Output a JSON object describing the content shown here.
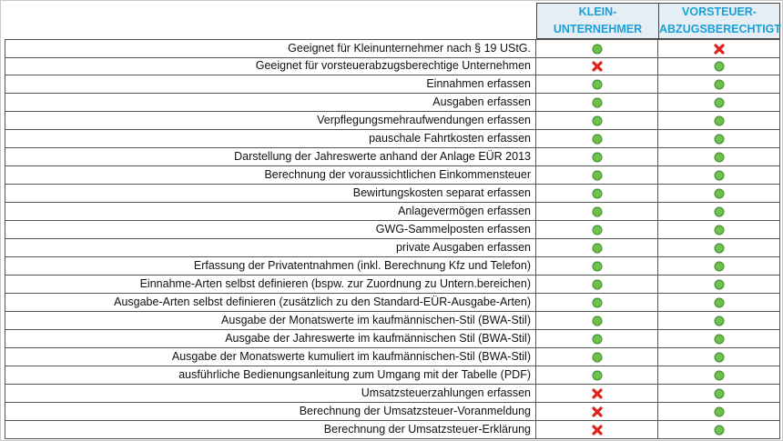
{
  "table": {
    "columns": [
      [
        "KLEIN-",
        "UNTERNEHMER"
      ],
      [
        "VORSTEUER-",
        "ABZUGSBERECHTIGT"
      ]
    ],
    "rows": [
      {
        "label": "Geeignet für Kleinunternehmer nach § 19 UStG.",
        "kleinunternehmer": true,
        "vorsteuerabzugsberechtigt": false
      },
      {
        "label": "Geeignet für vorsteuerabzugsberechtige Unternehmen",
        "kleinunternehmer": false,
        "vorsteuerabzugsberechtigt": true
      },
      {
        "label": "Einnahmen erfassen",
        "kleinunternehmer": true,
        "vorsteuerabzugsberechtigt": true
      },
      {
        "label": "Ausgaben erfassen",
        "kleinunternehmer": true,
        "vorsteuerabzugsberechtigt": true
      },
      {
        "label": "Verpflegungsmehraufwendungen erfassen",
        "kleinunternehmer": true,
        "vorsteuerabzugsberechtigt": true
      },
      {
        "label": "pauschale Fahrtkosten erfassen",
        "kleinunternehmer": true,
        "vorsteuerabzugsberechtigt": true
      },
      {
        "label": "Darstellung der Jahreswerte anhand der Anlage EÜR 2013",
        "kleinunternehmer": true,
        "vorsteuerabzugsberechtigt": true
      },
      {
        "label": "Berechnung der voraussichtlichen Einkommensteuer",
        "kleinunternehmer": true,
        "vorsteuerabzugsberechtigt": true
      },
      {
        "label": "Bewirtungskosten separat erfassen",
        "kleinunternehmer": true,
        "vorsteuerabzugsberechtigt": true
      },
      {
        "label": "Anlagevermögen erfassen",
        "kleinunternehmer": true,
        "vorsteuerabzugsberechtigt": true
      },
      {
        "label": "GWG-Sammelposten erfassen",
        "kleinunternehmer": true,
        "vorsteuerabzugsberechtigt": true
      },
      {
        "label": "private Ausgaben erfassen",
        "kleinunternehmer": true,
        "vorsteuerabzugsberechtigt": true
      },
      {
        "label": "Erfassung der Privatentnahmen (inkl. Berechnung Kfz und Telefon)",
        "kleinunternehmer": true,
        "vorsteuerabzugsberechtigt": true
      },
      {
        "label": "Einnahme-Arten selbst definieren (bspw. zur Zuordnung zu Untern.bereichen)",
        "kleinunternehmer": true,
        "vorsteuerabzugsberechtigt": true
      },
      {
        "label": "Ausgabe-Arten selbst definieren (zusätzlich zu den Standard-EÜR-Ausgabe-Arten)",
        "kleinunternehmer": true,
        "vorsteuerabzugsberechtigt": true
      },
      {
        "label": "Ausgabe der Monatswerte im kaufmännischen-Stil (BWA-Stil)",
        "kleinunternehmer": true,
        "vorsteuerabzugsberechtigt": true
      },
      {
        "label": "Ausgabe der Jahreswerte im kaufmännischen Stil (BWA-Stil)",
        "kleinunternehmer": true,
        "vorsteuerabzugsberechtigt": true
      },
      {
        "label": "Ausgabe der Monatswerte kumuliert im kaufmännischen-Stil (BWA-Stil)",
        "kleinunternehmer": true,
        "vorsteuerabzugsberechtigt": true
      },
      {
        "label": "ausführliche Bedienungsanleitung zum Umgang mit der Tabelle (PDF)",
        "kleinunternehmer": true,
        "vorsteuerabzugsberechtigt": true
      },
      {
        "label": "Umsatzsteuerzahlungen erfassen",
        "kleinunternehmer": false,
        "vorsteuerabzugsberechtigt": true
      },
      {
        "label": "Berechnung der Umsatzsteuer-Voranmeldung",
        "kleinunternehmer": false,
        "vorsteuerabzugsberechtigt": true
      },
      {
        "label": "Berechnung der Umsatzsteuer-Erklärung",
        "kleinunternehmer": false,
        "vorsteuerabzugsberechtigt": true
      }
    ]
  }
}
